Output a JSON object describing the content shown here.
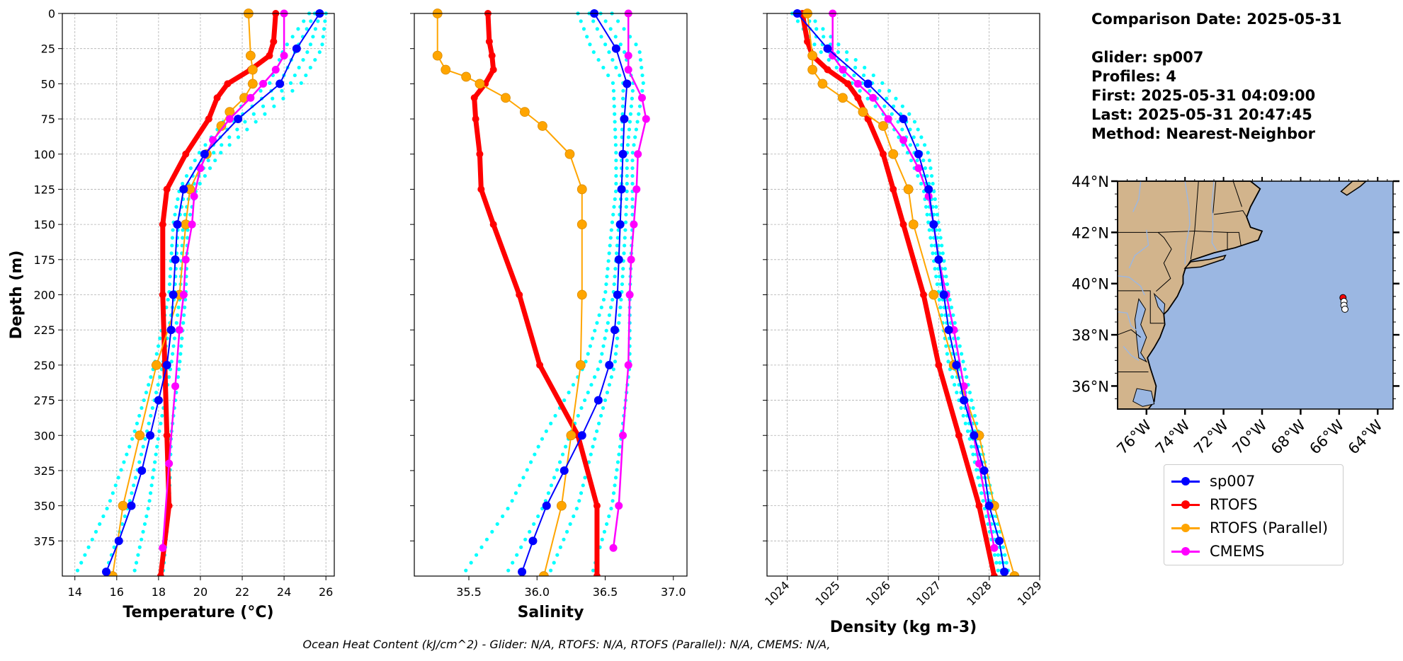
{
  "info": {
    "comparison_date": "Comparison Date: 2025-05-31",
    "glider": "Glider: sp007",
    "profiles": "Profiles: 4",
    "first": "First: 2025-05-31 04:09:00",
    "last": "Last: 2025-05-31 20:47:45",
    "method": "Method: Nearest-Neighbor"
  },
  "footer": "Ocean Heat Content (kJ/cm^2) - Glider: N/A,  RTOFS: N/A,  RTOFS (Parallel): N/A,  CMEMS: N/A,",
  "colors": {
    "glider": "#0000ff",
    "glider_profiles": "#00ffff",
    "rtofs": "#ff0000",
    "rtofs_parallel": "#ffa500",
    "cmems": "#ff00ff",
    "land": "#d2b48c",
    "ocean": "#9bb7e2"
  },
  "legend": [
    {
      "name": "sp007",
      "color": "#0000ff"
    },
    {
      "name": "RTOFS",
      "color": "#ff0000"
    },
    {
      "name": "RTOFS (Parallel)",
      "color": "#ffa500"
    },
    {
      "name": "CMEMS",
      "color": "#ff00ff"
    }
  ],
  "chart_data": [
    {
      "type": "line",
      "xlabel": "Temperature (°C)",
      "ylabel": "Depth (m)",
      "xlim": [
        13.4,
        26.4
      ],
      "ylim": [
        400,
        0
      ],
      "xticks": [
        14,
        16,
        18,
        20,
        22,
        24,
        26
      ],
      "yticks": [
        0,
        25,
        50,
        75,
        100,
        125,
        150,
        175,
        200,
        225,
        250,
        275,
        300,
        325,
        350,
        375
      ],
      "grid": true,
      "series": [
        {
          "name": "sp007",
          "depth": [
            0,
            25,
            50,
            75,
            100,
            125,
            150,
            175,
            200,
            225,
            250,
            275,
            300,
            325,
            350,
            375,
            397
          ],
          "values": [
            25.7,
            24.6,
            23.8,
            21.8,
            20.2,
            19.2,
            18.9,
            18.8,
            18.7,
            18.6,
            18.4,
            18.0,
            17.6,
            17.2,
            16.7,
            16.1,
            15.5
          ]
        },
        {
          "name": "RTOFS",
          "depth": [
            0,
            20,
            30,
            40,
            50,
            60,
            75,
            100,
            125,
            150,
            200,
            250,
            300,
            350,
            400
          ],
          "values": [
            23.6,
            23.5,
            23.3,
            22.4,
            21.3,
            20.8,
            20.4,
            19.3,
            18.4,
            18.2,
            18.2,
            18.3,
            18.4,
            18.5,
            18.1
          ]
        },
        {
          "name": "RTOFS (Parallel)",
          "depth": [
            0,
            30,
            40,
            50,
            60,
            70,
            80,
            100,
            125,
            150,
            200,
            250,
            300,
            350,
            400
          ],
          "values": [
            22.3,
            22.4,
            22.5,
            22.5,
            22.1,
            21.4,
            21.0,
            20.3,
            19.5,
            19.3,
            19.0,
            17.9,
            17.1,
            16.3,
            15.8
          ]
        },
        {
          "name": "CMEMS",
          "depth": [
            0,
            30,
            40,
            50,
            60,
            75,
            90,
            110,
            130,
            150,
            175,
            200,
            225,
            265,
            320,
            380
          ],
          "values": [
            24.0,
            24.0,
            23.6,
            23.0,
            22.4,
            21.4,
            20.6,
            20.0,
            19.7,
            19.6,
            19.3,
            19.2,
            19.0,
            18.8,
            18.5,
            18.2
          ]
        },
        {
          "name": "glider profiles",
          "depth": [
            0,
            25,
            50,
            75,
            100,
            125,
            150,
            200,
            250,
            300,
            350,
            400
          ],
          "values_min": [
            25.2,
            24.0,
            23.3,
            21.2,
            19.9,
            19.0,
            18.7,
            18.5,
            17.8,
            16.8,
            15.6,
            14.0
          ],
          "values_max": [
            26.0,
            25.8,
            24.8,
            22.8,
            20.9,
            19.8,
            19.4,
            19.3,
            19.0,
            18.6,
            18.5,
            18.2
          ]
        }
      ]
    },
    {
      "type": "line",
      "xlabel": "Salinity",
      "xlim": [
        35.1,
        37.1
      ],
      "ylim": [
        400,
        0
      ],
      "xticks": [
        35.5,
        36.0,
        36.5,
        37.0
      ],
      "grid": false,
      "series": [
        {
          "name": "sp007",
          "depth": [
            0,
            25,
            50,
            75,
            100,
            125,
            150,
            175,
            200,
            225,
            250,
            275,
            300,
            325,
            350,
            375,
            397
          ],
          "values": [
            36.42,
            36.58,
            36.66,
            36.64,
            36.63,
            36.62,
            36.61,
            36.6,
            36.59,
            36.57,
            36.53,
            36.45,
            36.33,
            36.2,
            36.07,
            35.97,
            35.89
          ]
        },
        {
          "name": "RTOFS",
          "depth": [
            0,
            20,
            30,
            40,
            50,
            60,
            75,
            100,
            125,
            150,
            200,
            250,
            300,
            350,
            400
          ],
          "values": [
            35.64,
            35.65,
            35.67,
            35.68,
            35.62,
            35.54,
            35.55,
            35.58,
            35.59,
            35.68,
            35.87,
            36.02,
            36.3,
            36.44,
            36.44
          ]
        },
        {
          "name": "RTOFS (Parallel)",
          "depth": [
            0,
            30,
            40,
            45,
            50,
            60,
            70,
            80,
            100,
            125,
            150,
            200,
            250,
            300,
            350,
            400
          ],
          "values": [
            35.27,
            35.27,
            35.33,
            35.48,
            35.58,
            35.77,
            35.91,
            36.04,
            36.24,
            36.33,
            36.33,
            36.33,
            36.32,
            36.25,
            36.18,
            36.05
          ]
        },
        {
          "name": "CMEMS",
          "depth": [
            0,
            30,
            40,
            60,
            75,
            100,
            125,
            150,
            175,
            200,
            250,
            300,
            350,
            380
          ],
          "values": [
            36.67,
            36.67,
            36.67,
            36.77,
            36.8,
            36.74,
            36.73,
            36.71,
            36.69,
            36.68,
            36.67,
            36.63,
            36.6,
            36.56
          ]
        },
        {
          "name": "glider profiles",
          "depth": [
            0,
            25,
            50,
            75,
            100,
            125,
            150,
            200,
            250,
            300,
            350,
            400
          ],
          "values_min": [
            36.3,
            36.4,
            36.56,
            36.57,
            36.58,
            36.58,
            36.55,
            36.5,
            36.35,
            36.05,
            35.8,
            35.45
          ],
          "values_max": [
            36.55,
            36.75,
            36.78,
            36.74,
            36.7,
            36.7,
            36.7,
            36.68,
            36.68,
            36.62,
            36.55,
            36.4
          ]
        }
      ]
    },
    {
      "type": "line",
      "xlabel": "Density (kg m-3)",
      "xlim": [
        1023.6,
        1029.0
      ],
      "ylim": [
        400,
        0
      ],
      "xticks": [
        1024,
        1025,
        1026,
        1027,
        1028,
        1029
      ],
      "grid": true,
      "series": [
        {
          "name": "sp007",
          "depth": [
            0,
            25,
            50,
            75,
            100,
            125,
            150,
            175,
            200,
            225,
            250,
            275,
            300,
            325,
            350,
            375,
            397
          ],
          "values": [
            1024.2,
            1024.8,
            1025.6,
            1026.3,
            1026.6,
            1026.8,
            1026.9,
            1027.0,
            1027.1,
            1027.2,
            1027.35,
            1027.5,
            1027.7,
            1027.9,
            1028.0,
            1028.2,
            1028.3
          ]
        },
        {
          "name": "RTOFS",
          "depth": [
            0,
            20,
            30,
            40,
            50,
            60,
            75,
            100,
            125,
            150,
            200,
            250,
            300,
            350,
            400
          ],
          "values": [
            1024.3,
            1024.4,
            1024.5,
            1024.8,
            1025.2,
            1025.4,
            1025.6,
            1025.9,
            1026.1,
            1026.3,
            1026.7,
            1027.0,
            1027.4,
            1027.8,
            1028.1
          ]
        },
        {
          "name": "RTOFS (Parallel)",
          "depth": [
            0,
            30,
            40,
            50,
            60,
            70,
            80,
            100,
            125,
            150,
            200,
            250,
            300,
            350,
            400
          ],
          "values": [
            1024.4,
            1024.5,
            1024.5,
            1024.7,
            1025.1,
            1025.5,
            1025.9,
            1026.1,
            1026.4,
            1026.5,
            1026.9,
            1027.3,
            1027.8,
            1028.1,
            1028.5
          ]
        },
        {
          "name": "CMEMS",
          "depth": [
            0,
            30,
            40,
            50,
            60,
            75,
            90,
            110,
            130,
            150,
            175,
            200,
            225,
            265,
            320,
            380
          ],
          "values": [
            1024.9,
            1024.9,
            1025.1,
            1025.4,
            1025.7,
            1026.0,
            1026.3,
            1026.6,
            1026.8,
            1026.9,
            1027.0,
            1027.15,
            1027.3,
            1027.5,
            1027.8,
            1028.1
          ]
        },
        {
          "name": "glider profiles",
          "depth": [
            0,
            25,
            50,
            75,
            100,
            125,
            150,
            200,
            250,
            300,
            350,
            400
          ],
          "values_min": [
            1024.1,
            1024.6,
            1025.3,
            1026.0,
            1026.4,
            1026.7,
            1026.8,
            1027.0,
            1027.2,
            1027.6,
            1027.9,
            1028.2
          ],
          "values_max": [
            1024.4,
            1025.1,
            1025.9,
            1026.5,
            1026.8,
            1026.9,
            1027.0,
            1027.2,
            1027.5,
            1027.8,
            1028.1,
            1028.4
          ]
        }
      ]
    },
    {
      "type": "map",
      "lat_ticks": [
        "44°N",
        "42°N",
        "40°N",
        "38°N",
        "36°N"
      ],
      "lon_ticks": [
        "76°W",
        "74°W",
        "72°W",
        "70°W",
        "68°W",
        "66°W",
        "64°W"
      ],
      "lat_values": [
        44,
        42,
        40,
        38,
        36
      ],
      "lon_values": [
        -76,
        -74,
        -72,
        -70,
        -68,
        -66,
        -64
      ],
      "extent": {
        "lon": [
          -77.5,
          -63.2
        ],
        "lat": [
          35.1,
          44.0
        ]
      },
      "glider_positions": [
        {
          "lon": -65.8,
          "lat": 39.45,
          "color": "#ff0000"
        },
        {
          "lon": -65.75,
          "lat": 39.3,
          "color": "#ffffff"
        },
        {
          "lon": -65.75,
          "lat": 39.15,
          "color": "#ffffff"
        },
        {
          "lon": -65.7,
          "lat": 39.0,
          "color": "#ffffff"
        }
      ]
    }
  ]
}
